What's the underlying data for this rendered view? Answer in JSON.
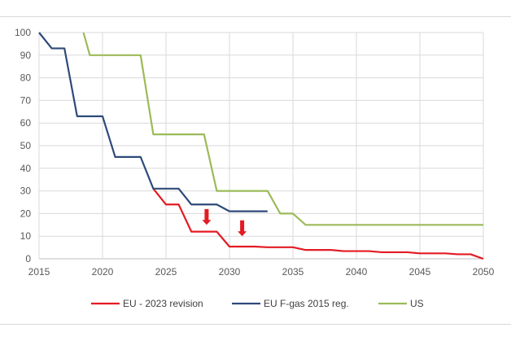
{
  "chart_data": {
    "type": "line",
    "title": "",
    "xlabel": "",
    "ylabel": "",
    "xlim": [
      2015,
      2050
    ],
    "ylim": [
      0,
      100
    ],
    "xticks": [
      "2015",
      "2020",
      "2025",
      "2030",
      "2035",
      "2040",
      "2045",
      "2050"
    ],
    "yticks": [
      "0",
      "10",
      "20",
      "30",
      "40",
      "50",
      "60",
      "70",
      "80",
      "90",
      "100"
    ],
    "grid": true,
    "legend_position": "bottom",
    "series": [
      {
        "name": "EU - 2023 revision",
        "color": "#e31b23",
        "x": [
          2024,
          2025,
          2026,
          2027,
          2028,
          2029,
          2030,
          2031,
          2032,
          2033,
          2034,
          2035,
          2036,
          2037,
          2038,
          2039,
          2040,
          2041,
          2042,
          2043,
          2044,
          2045,
          2046,
          2047,
          2048,
          2049,
          2050
        ],
        "y": [
          31,
          24,
          24,
          12,
          12,
          12,
          5.4,
          5.4,
          5.4,
          5.1,
          5.1,
          5.1,
          3.9,
          3.9,
          3.9,
          3.4,
          3.4,
          3.4,
          2.9,
          2.9,
          2.9,
          2.4,
          2.4,
          2.4,
          2,
          2,
          0
        ]
      },
      {
        "name": "EU F-gas 2015 reg.",
        "color": "#2e4a7a",
        "x": [
          2015,
          2016,
          2017,
          2018,
          2019,
          2020,
          2021,
          2022,
          2023,
          2024,
          2025,
          2026,
          2027,
          2028,
          2029,
          2030,
          2031,
          2032,
          2033
        ],
        "y": [
          100,
          93,
          93,
          63,
          63,
          63,
          45,
          45,
          45,
          31,
          31,
          31,
          24,
          24,
          24,
          21,
          21,
          21,
          21
        ]
      },
      {
        "name": "US",
        "color": "#9bbb59",
        "x": [
          2018.5,
          2019,
          2020,
          2021,
          2022,
          2023,
          2024,
          2025,
          2026,
          2027,
          2028,
          2029,
          2030,
          2031,
          2032,
          2033,
          2034,
          2035,
          2036,
          2040,
          2045,
          2050
        ],
        "y": [
          100,
          90,
          90,
          90,
          90,
          90,
          55,
          55,
          55,
          55,
          55,
          30,
          30,
          30,
          30,
          30,
          20,
          20,
          15,
          15,
          15,
          15
        ]
      }
    ],
    "annotations": [
      {
        "type": "arrow-down",
        "color": "#e31b23",
        "x": 2028.2,
        "y_from": 22,
        "y_to": 15
      },
      {
        "type": "arrow-down",
        "color": "#e31b23",
        "x": 2031,
        "y_from": 17,
        "y_to": 10
      }
    ]
  }
}
